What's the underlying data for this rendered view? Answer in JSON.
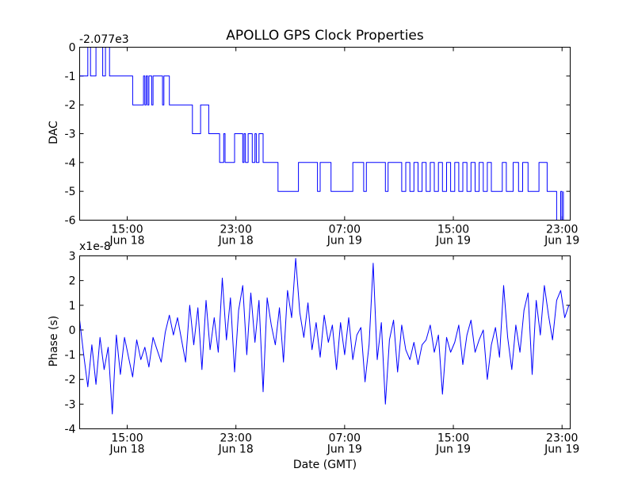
{
  "figure": {
    "title": "APOLLO GPS Clock Properties",
    "x_axis_label": "Date (GMT)",
    "x_ticks": [
      {
        "time": "15:00",
        "date": "Jun 18",
        "hours": 15
      },
      {
        "time": "23:00",
        "date": "Jun 18",
        "hours": 23
      },
      {
        "time": "07:00",
        "date": "Jun 19",
        "hours": 31
      },
      {
        "time": "15:00",
        "date": "Jun 19",
        "hours": 39
      },
      {
        "time": "23:00",
        "date": "Jun 19",
        "hours": 47
      }
    ],
    "line_color": "#0000ff"
  },
  "chart_data": [
    {
      "type": "line",
      "name": "dac",
      "ylabel": "DAC",
      "offset_label": "-2.077e3",
      "xlim_hours": [
        11.5,
        47.6
      ],
      "ylim": [
        -6,
        0
      ],
      "yticks": [
        "0",
        "-1",
        "-2",
        "-3",
        "-4",
        "-5",
        "-6"
      ],
      "ytick_values": [
        0,
        -1,
        -2,
        -3,
        -4,
        -5,
        -6
      ],
      "x_hours": [
        11.5,
        11.9,
        12.1,
        12.3,
        12.5,
        12.7,
        13.2,
        13.4,
        13.7,
        14.0,
        15.2,
        15.4,
        16.2,
        16.3,
        16.4,
        16.5,
        16.6,
        16.7,
        16.8,
        16.9,
        17.2,
        17.6,
        17.7,
        18.1,
        18.3,
        19.6,
        19.8,
        20.4,
        21.0,
        21.6,
        21.8,
        22.1,
        22.2,
        22.9,
        23.5,
        23.6,
        23.7,
        23.9,
        24.2,
        24.4,
        24.5,
        24.7,
        24.9,
        25.0,
        25.3,
        25.6,
        26.1,
        26.5,
        27.6,
        29.0,
        29.2,
        30.0,
        31.4,
        31.6,
        32.4,
        32.6,
        33.7,
        34.0,
        34.2,
        35.2,
        35.5,
        35.8,
        36.1,
        36.4,
        36.7,
        37.0,
        37.3,
        37.6,
        37.9,
        38.2,
        38.5,
        38.8,
        39.1,
        39.4,
        39.7,
        40.0,
        40.3,
        40.6,
        40.9,
        41.2,
        41.5,
        41.8,
        42.6,
        42.9,
        43.4,
        43.8,
        44.1,
        44.5,
        44.9,
        45.1,
        45.3,
        45.9,
        46.5,
        46.6,
        46.9,
        47.0,
        47.1
      ],
      "values": [
        -1,
        -1,
        0,
        -1,
        -1,
        0,
        -1,
        0,
        -1,
        -1,
        -1,
        -2,
        -1,
        -2,
        -1,
        -2,
        -1,
        -1,
        -2,
        -1,
        -1,
        -2,
        -1,
        -2,
        -2,
        -2,
        -3,
        -2,
        -3,
        -3,
        -4,
        -3,
        -4,
        -3,
        -4,
        -3,
        -4,
        -3,
        -4,
        -3,
        -4,
        -3,
        -3,
        -4,
        -4,
        -4,
        -5,
        -5,
        -4,
        -5,
        -4,
        -5,
        -5,
        -4,
        -5,
        -4,
        -4,
        -5,
        -4,
        -5,
        -4,
        -5,
        -4,
        -5,
        -4,
        -5,
        -4,
        -5,
        -4,
        -5,
        -4,
        -5,
        -4,
        -5,
        -4,
        -5,
        -4,
        -5,
        -4,
        -5,
        -4,
        -5,
        -4,
        -5,
        -4,
        -5,
        -4,
        -5,
        -5,
        -5,
        -4,
        -5,
        -5,
        -6,
        -5,
        -6,
        -5
      ]
    },
    {
      "type": "line",
      "name": "phase",
      "ylabel": "Phase (s)",
      "offset_label": "x1e-8",
      "xlim_hours": [
        11.5,
        47.6
      ],
      "ylim": [
        -4,
        3
      ],
      "yticks": [
        "3",
        "2",
        "1",
        "0",
        "-1",
        "-2",
        "-3",
        "-4"
      ],
      "ytick_values": [
        3,
        2,
        1,
        0,
        -1,
        -2,
        -3,
        -4
      ],
      "x_hours": [
        11.5,
        11.8,
        12.1,
        12.4,
        12.7,
        13.0,
        13.3,
        13.6,
        13.9,
        14.2,
        14.5,
        14.8,
        15.1,
        15.4,
        15.7,
        16.0,
        16.3,
        16.6,
        16.9,
        17.2,
        17.5,
        17.8,
        18.1,
        18.4,
        18.7,
        19.0,
        19.3,
        19.6,
        19.9,
        20.2,
        20.5,
        20.8,
        21.1,
        21.4,
        21.7,
        22.0,
        22.3,
        22.6,
        22.9,
        23.2,
        23.5,
        23.8,
        24.1,
        24.4,
        24.7,
        25.0,
        25.3,
        25.6,
        25.9,
        26.2,
        26.5,
        26.8,
        27.1,
        27.4,
        27.7,
        28.0,
        28.3,
        28.6,
        28.9,
        29.2,
        29.5,
        29.8,
        30.1,
        30.4,
        30.7,
        31.0,
        31.3,
        31.6,
        31.9,
        32.2,
        32.5,
        32.8,
        33.1,
        33.4,
        33.7,
        34.0,
        34.3,
        34.6,
        34.9,
        35.2,
        35.5,
        35.8,
        36.1,
        36.4,
        36.7,
        37.0,
        37.3,
        37.6,
        37.9,
        38.2,
        38.5,
        38.8,
        39.1,
        39.4,
        39.7,
        40.0,
        40.3,
        40.6,
        40.9,
        41.2,
        41.5,
        41.8,
        42.1,
        42.4,
        42.7,
        43.0,
        43.3,
        43.6,
        43.9,
        44.2,
        44.5,
        44.8,
        45.1,
        45.4,
        45.7,
        46.0,
        46.3,
        46.6,
        46.9,
        47.2,
        47.5
      ],
      "values": [
        0.4,
        -1.0,
        -2.3,
        -0.6,
        -2.2,
        -0.3,
        -1.6,
        -0.7,
        -3.4,
        -0.2,
        -1.8,
        -0.3,
        -1.1,
        -1.9,
        -0.4,
        -1.2,
        -0.7,
        -1.5,
        -0.3,
        -0.8,
        -1.3,
        -0.1,
        0.6,
        -0.2,
        0.5,
        -0.4,
        -1.3,
        1.0,
        -0.6,
        0.9,
        -1.6,
        1.2,
        -0.8,
        0.5,
        -0.9,
        2.1,
        -0.4,
        1.3,
        -1.7,
        0.8,
        1.8,
        -1.0,
        1.5,
        -0.5,
        1.2,
        -2.5,
        1.3,
        0.2,
        -0.6,
        0.9,
        -1.3,
        1.6,
        0.5,
        2.9,
        0.7,
        -0.3,
        1.1,
        -0.8,
        0.3,
        -1.1,
        0.6,
        -0.5,
        0.2,
        -1.6,
        0.3,
        -1.0,
        0.5,
        -1.2,
        -0.2,
        0.1,
        -2.1,
        -0.6,
        2.7,
        -1.2,
        0.3,
        -3.0,
        -0.4,
        0.4,
        -1.7,
        0.2,
        -0.8,
        -1.2,
        -0.5,
        -1.4,
        -0.6,
        -0.4,
        0.2,
        -0.9,
        -0.2,
        -2.6,
        -0.3,
        -0.9,
        -0.5,
        0.2,
        -1.4,
        -0.2,
        0.4,
        -0.9,
        -0.4,
        0.0,
        -2.0,
        -0.6,
        0.1,
        -1.1,
        1.8,
        -0.3,
        -1.6,
        0.2,
        -0.9,
        0.8,
        1.5,
        -1.8,
        1.2,
        -0.2,
        1.8,
        0.6,
        -0.4,
        1.2,
        1.6,
        0.5,
        1.0
      ]
    }
  ]
}
